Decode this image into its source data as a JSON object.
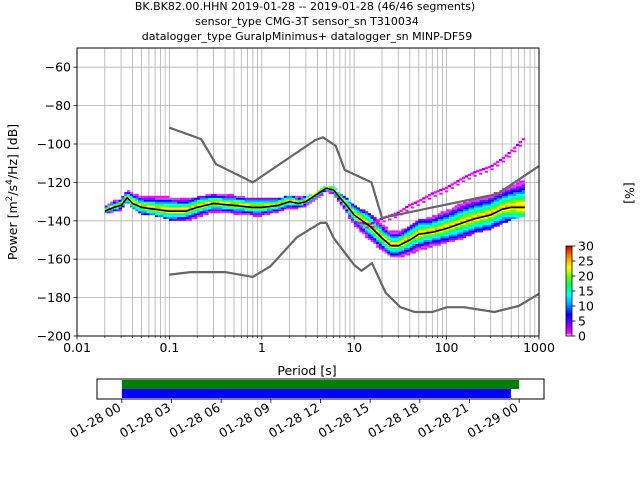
{
  "chart_data": {
    "type": "heatmap",
    "title_lines": [
      "BK.BK82.00.HHN   2019-01-28 -- 2019-01-28  (46/46 segments)",
      "sensor_type CMG-3T sensor_sn T310034",
      "datalogger_type GuralpMinimus+ datalogger_sn MINP-DF59"
    ],
    "xlabel": "Period [s]",
    "ylabel": "Power [m2/s4/Hz] [dB]",
    "xscale": "log",
    "xlim": [
      0.01,
      1000
    ],
    "ylim": [
      -200,
      -50
    ],
    "x_ticks": [
      {
        "v": 0.01,
        "label": "0.01"
      },
      {
        "v": 0.1,
        "label": "0.1"
      },
      {
        "v": 1,
        "label": "1"
      },
      {
        "v": 10,
        "label": "10"
      },
      {
        "v": 100,
        "label": "100"
      },
      {
        "v": 1000,
        "label": "1000"
      }
    ],
    "y_ticks": [
      {
        "v": -60,
        "label": "−60"
      },
      {
        "v": -80,
        "label": "−80"
      },
      {
        "v": -100,
        "label": "−100"
      },
      {
        "v": -120,
        "label": "−120"
      },
      {
        "v": -140,
        "label": "−140"
      },
      {
        "v": -160,
        "label": "−160"
      },
      {
        "v": -180,
        "label": "−180"
      },
      {
        "v": -200,
        "label": "−200"
      }
    ],
    "noise_models": [
      {
        "name": "NHNM",
        "color": "#666666",
        "points": [
          [
            0.1,
            -91.5
          ],
          [
            0.22,
            -97.4
          ],
          [
            0.32,
            -110.5
          ],
          [
            0.8,
            -120
          ],
          [
            3.8,
            -97.9
          ],
          [
            4.6,
            -96.5
          ],
          [
            6.3,
            -101
          ],
          [
            7.9,
            -113.5
          ],
          [
            15.4,
            -120
          ],
          [
            20,
            -138.5
          ],
          [
            354.8,
            -126
          ],
          [
            1000,
            -111.5
          ]
        ]
      },
      {
        "name": "NLNM",
        "color": "#666666",
        "points": [
          [
            0.1,
            -168
          ],
          [
            0.17,
            -166.7
          ],
          [
            0.4,
            -166.7
          ],
          [
            0.8,
            -169.2
          ],
          [
            1.24,
            -163.7
          ],
          [
            2.4,
            -148.6
          ],
          [
            4.3,
            -141.1
          ],
          [
            5,
            -141.1
          ],
          [
            6,
            -149
          ],
          [
            10,
            -163
          ],
          [
            12,
            -166
          ],
          [
            15.6,
            -162.1
          ],
          [
            21.9,
            -177.5
          ],
          [
            31.6,
            -185
          ],
          [
            45,
            -187.5
          ],
          [
            70,
            -187.5
          ],
          [
            101,
            -185
          ],
          [
            154,
            -185
          ],
          [
            328,
            -187.5
          ],
          [
            600,
            -184.4
          ],
          [
            1000,
            -178
          ]
        ]
      }
    ],
    "psd_mean": {
      "name": "mean",
      "color": "#000000",
      "points": [
        [
          0.02,
          -135
        ],
        [
          0.025,
          -133
        ],
        [
          0.03,
          -132
        ],
        [
          0.035,
          -128
        ],
        [
          0.04,
          -131
        ],
        [
          0.05,
          -133
        ],
        [
          0.07,
          -134
        ],
        [
          0.1,
          -135
        ],
        [
          0.15,
          -135
        ],
        [
          0.2,
          -133
        ],
        [
          0.3,
          -131
        ],
        [
          0.5,
          -132
        ],
        [
          0.8,
          -133
        ],
        [
          1,
          -133
        ],
        [
          1.5,
          -132
        ],
        [
          2,
          -130
        ],
        [
          2.5,
          -131
        ],
        [
          3,
          -130
        ],
        [
          4,
          -126
        ],
        [
          5,
          -123
        ],
        [
          6,
          -124
        ],
        [
          7,
          -128
        ],
        [
          8,
          -131
        ],
        [
          10,
          -137
        ],
        [
          15,
          -143
        ],
        [
          20,
          -149
        ],
        [
          25,
          -153
        ],
        [
          30,
          -153
        ],
        [
          40,
          -150
        ],
        [
          50,
          -147
        ],
        [
          70,
          -146
        ],
        [
          100,
          -144
        ],
        [
          150,
          -141
        ],
        [
          200,
          -139
        ],
        [
          300,
          -137
        ],
        [
          400,
          -134
        ],
        [
          500,
          -133
        ],
        [
          700,
          -133
        ]
      ]
    },
    "psd_band": {
      "x": [
        0.02,
        0.025,
        0.03,
        0.035,
        0.04,
        0.05,
        0.07,
        0.1,
        0.15,
        0.2,
        0.3,
        0.5,
        0.8,
        1,
        1.5,
        2,
        2.5,
        3,
        4,
        5,
        6,
        7,
        8,
        10,
        15,
        20,
        25,
        30,
        40,
        50,
        70,
        100,
        150,
        200,
        300,
        400,
        500,
        700
      ],
      "upper": [
        -133,
        -130,
        -129,
        -124,
        -126,
        -128,
        -128,
        -128,
        -129,
        -128,
        -126,
        -127,
        -129,
        -129,
        -129,
        -127,
        -128,
        -128,
        -125,
        -122,
        -123,
        -126,
        -128,
        -132,
        -137,
        -142,
        -146,
        -146,
        -143,
        -140,
        -138,
        -135,
        -131,
        -129,
        -127,
        -124,
        -122,
        -119
      ],
      "lower": [
        -137,
        -136,
        -135,
        -131,
        -134,
        -137,
        -138,
        -140,
        -141,
        -139,
        -136,
        -137,
        -138,
        -138,
        -136,
        -134,
        -134,
        -133,
        -129,
        -125,
        -127,
        -131,
        -135,
        -143,
        -151,
        -156,
        -159,
        -160,
        -158,
        -156,
        -154,
        -152,
        -150,
        -147,
        -145,
        -142,
        -140,
        -138
      ]
    },
    "outlier_branch": {
      "x": [
        10,
        15,
        20,
        30,
        40,
        50,
        70,
        100,
        150,
        200,
        300,
        400,
        500,
        700
      ],
      "y": [
        -141,
        -142,
        -139,
        -136,
        -132,
        -130,
        -126,
        -123,
        -118,
        -115,
        -112,
        -108,
        -104,
        -97
      ]
    },
    "colorbar": {
      "label": "[%]",
      "min": 0,
      "max": 30,
      "ticks": [
        0,
        5,
        10,
        15,
        20,
        25,
        30
      ],
      "colormap": "pqlx"
    },
    "timeline": {
      "tick_labels": [
        "01-28 00",
        "01-28 03",
        "01-28 06",
        "01-28 09",
        "01-28 12",
        "01-28 15",
        "01-28 18",
        "01-28 21",
        "01-29 00"
      ],
      "span_hours": [
        -1.5,
        25.5
      ],
      "bars": [
        {
          "name": "data",
          "color": "#008000",
          "start_h": 0,
          "end_h": 24.0
        },
        {
          "name": "psd",
          "color": "#0000ff",
          "start_h": 0,
          "end_h": 23.5
        }
      ]
    }
  }
}
